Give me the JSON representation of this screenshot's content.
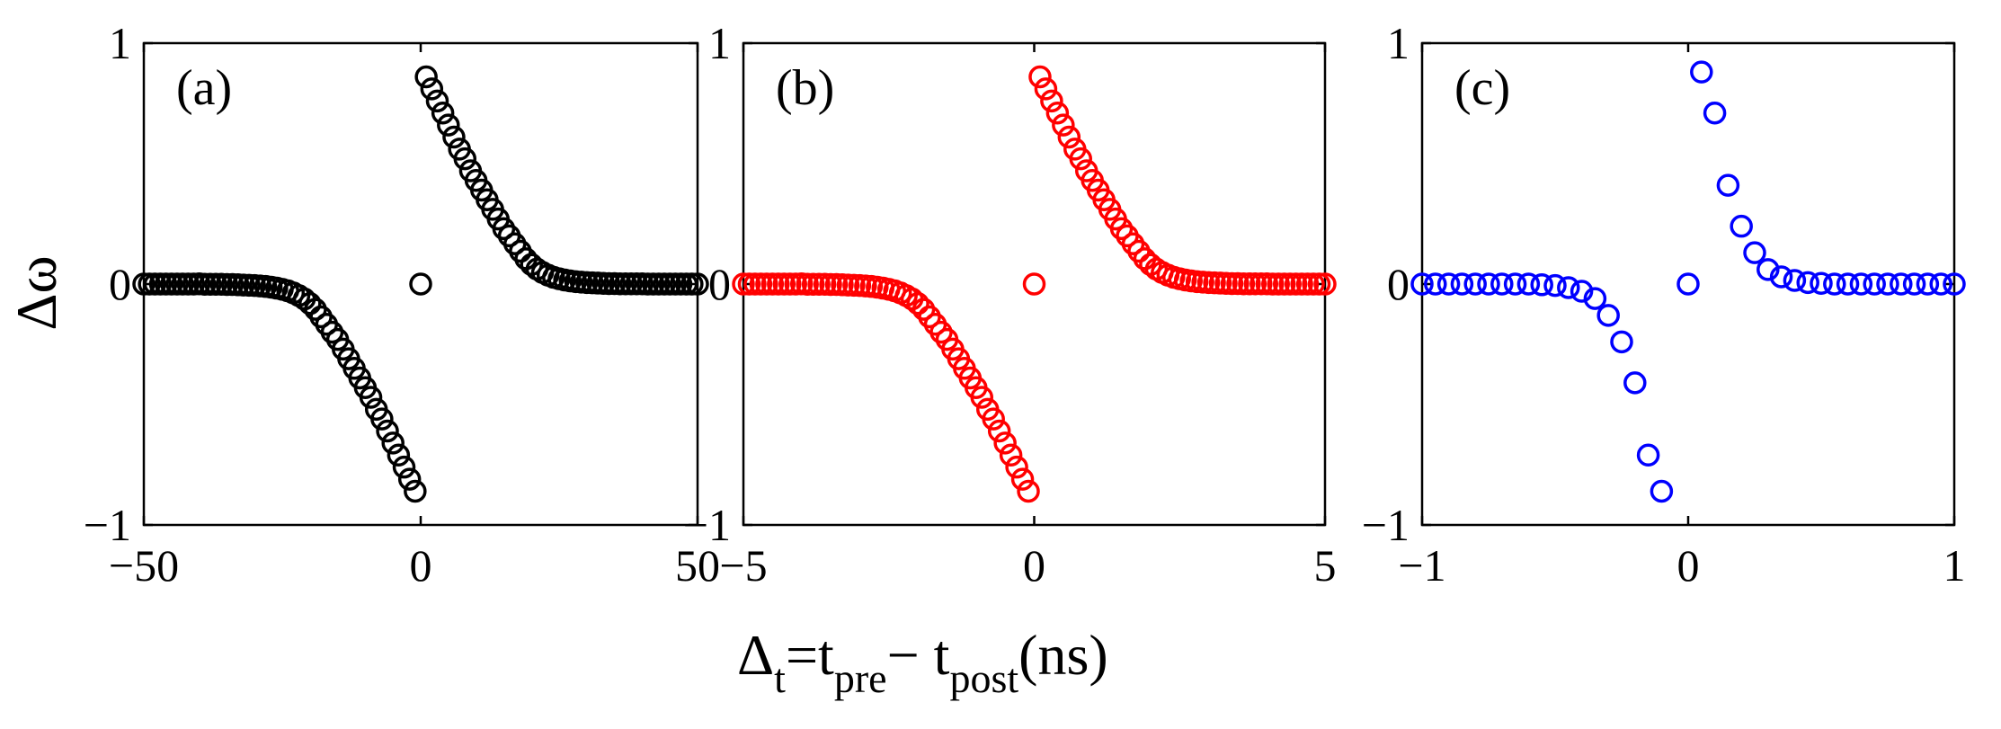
{
  "chart_data": [
    {
      "type": "scatter",
      "panel_label": "(a)",
      "marker_color": "#000000",
      "xlim": [
        -50,
        50
      ],
      "ylim": [
        -1,
        1
      ],
      "xticks": [
        -50,
        0,
        50
      ],
      "xtick_labels": [
        "−50",
        "0",
        "50"
      ],
      "yticks": [
        -1,
        0,
        1
      ],
      "ytick_labels": [
        "−1",
        "0",
        "1"
      ],
      "ylabel": "Δω",
      "x": [
        -50,
        -49,
        -48,
        -47,
        -46,
        -45,
        -44,
        -43,
        -42,
        -41,
        -40,
        -39,
        -38,
        -37,
        -36,
        -35,
        -34,
        -33,
        -32,
        -31,
        -30,
        -29,
        -28,
        -27,
        -26,
        -25,
        -24,
        -23,
        -22,
        -21,
        -20,
        -19,
        -18,
        -17,
        -16,
        -15,
        -14,
        -13,
        -12,
        -11,
        -10,
        -9,
        -8,
        -7,
        -6,
        -5,
        -4,
        -3,
        -2,
        -1,
        0,
        1,
        2,
        3,
        4,
        5,
        6,
        7,
        8,
        9,
        10,
        11,
        12,
        13,
        14,
        15,
        16,
        17,
        18,
        19,
        20,
        21,
        22,
        23,
        24,
        25,
        26,
        27,
        28,
        29,
        30,
        31,
        32,
        33,
        34,
        35,
        36,
        37,
        38,
        39,
        40,
        41,
        42,
        43,
        44,
        45,
        46,
        47,
        48,
        49,
        50
      ],
      "y": [
        0,
        0,
        0,
        0,
        0,
        0,
        0,
        0,
        0,
        0,
        0.001,
        -0.001,
        -0.001,
        -0.001,
        -0.001,
        -0.002,
        -0.002,
        -0.003,
        -0.004,
        -0.005,
        -0.006,
        -0.008,
        -0.01,
        -0.013,
        -0.017,
        -0.022,
        -0.028,
        -0.037,
        -0.048,
        -0.062,
        -0.081,
        -0.105,
        -0.136,
        -0.167,
        -0.2,
        -0.23,
        -0.27,
        -0.31,
        -0.35,
        -0.39,
        -0.43,
        -0.47,
        -0.52,
        -0.56,
        -0.61,
        -0.66,
        -0.71,
        -0.76,
        -0.81,
        -0.86,
        0,
        0.86,
        0.81,
        0.76,
        0.71,
        0.66,
        0.61,
        0.56,
        0.52,
        0.47,
        0.43,
        0.39,
        0.35,
        0.31,
        0.27,
        0.23,
        0.2,
        0.167,
        0.136,
        0.105,
        0.081,
        0.062,
        0.048,
        0.037,
        0.028,
        0.022,
        0.017,
        0.013,
        0.01,
        0.008,
        0.006,
        0.005,
        0.004,
        0.003,
        0.002,
        0.002,
        0.001,
        0.001,
        0.001,
        0.001,
        0.001,
        0,
        0,
        0,
        0,
        0,
        0,
        0,
        0,
        0,
        0
      ]
    },
    {
      "type": "scatter",
      "panel_label": "(b)",
      "marker_color": "#ff0000",
      "xlim": [
        -5,
        5
      ],
      "ylim": [
        -1,
        1
      ],
      "xticks": [
        -5,
        0,
        5
      ],
      "xtick_labels": [
        "−5",
        "0",
        "5"
      ],
      "yticks": [
        -1,
        0,
        1
      ],
      "ytick_labels": [
        "−1",
        "0",
        "1"
      ],
      "ylabel": "",
      "x": [
        -5,
        -4.9,
        -4.8,
        -4.7,
        -4.6,
        -4.5,
        -4.4,
        -4.3,
        -4.2,
        -4.1,
        -4,
        -3.9,
        -3.8,
        -3.7,
        -3.6,
        -3.5,
        -3.4,
        -3.3,
        -3.2,
        -3.1,
        -3,
        -2.9,
        -2.8,
        -2.7,
        -2.6,
        -2.5,
        -2.4,
        -2.3,
        -2.2,
        -2.1,
        -2,
        -1.9,
        -1.8,
        -1.7,
        -1.6,
        -1.5,
        -1.4,
        -1.3,
        -1.2,
        -1.1,
        -1,
        -0.9,
        -0.8,
        -0.7,
        -0.6,
        -0.5,
        -0.4,
        -0.3,
        -0.2,
        -0.1,
        0,
        0.1,
        0.2,
        0.3,
        0.4,
        0.5,
        0.6,
        0.7,
        0.8,
        0.9,
        1,
        1.1,
        1.2,
        1.3,
        1.4,
        1.5,
        1.6,
        1.7,
        1.8,
        1.9,
        2,
        2.1,
        2.2,
        2.3,
        2.4,
        2.5,
        2.6,
        2.7,
        2.8,
        2.9,
        3,
        3.1,
        3.2,
        3.3,
        3.4,
        3.5,
        3.6,
        3.7,
        3.8,
        3.9,
        4,
        4.1,
        4.2,
        4.3,
        4.4,
        4.5,
        4.6,
        4.7,
        4.8,
        4.9,
        5
      ],
      "y": [
        0,
        0,
        0,
        0,
        0,
        0,
        0,
        0,
        0,
        0,
        0.001,
        -0.001,
        -0.001,
        -0.001,
        -0.001,
        -0.002,
        -0.002,
        -0.003,
        -0.004,
        -0.005,
        -0.006,
        -0.008,
        -0.01,
        -0.013,
        -0.017,
        -0.022,
        -0.028,
        -0.037,
        -0.048,
        -0.062,
        -0.081,
        -0.105,
        -0.136,
        -0.167,
        -0.2,
        -0.23,
        -0.27,
        -0.31,
        -0.35,
        -0.39,
        -0.43,
        -0.47,
        -0.52,
        -0.56,
        -0.61,
        -0.66,
        -0.71,
        -0.76,
        -0.81,
        -0.86,
        0,
        0.86,
        0.81,
        0.76,
        0.71,
        0.66,
        0.61,
        0.56,
        0.52,
        0.47,
        0.43,
        0.39,
        0.35,
        0.31,
        0.27,
        0.23,
        0.2,
        0.167,
        0.136,
        0.105,
        0.081,
        0.062,
        0.048,
        0.037,
        0.028,
        0.022,
        0.017,
        0.013,
        0.01,
        0.008,
        0.006,
        0.005,
        0.004,
        0.003,
        0.002,
        0.002,
        0.001,
        0.001,
        0.001,
        0.001,
        0.001,
        0,
        0,
        0,
        0,
        0,
        0,
        0,
        0,
        0,
        0
      ]
    },
    {
      "type": "scatter",
      "panel_label": "(c)",
      "marker_color": "#0000ff",
      "xlim": [
        -1,
        1
      ],
      "ylim": [
        -1,
        1
      ],
      "xticks": [
        -1,
        0,
        1
      ],
      "xtick_labels": [
        "−1",
        "0",
        "1"
      ],
      "yticks": [
        -1,
        0,
        1
      ],
      "ytick_labels": [
        "−1",
        "0",
        "1"
      ],
      "ylabel": "",
      "x": [
        -1,
        -0.95,
        -0.9,
        -0.85,
        -0.8,
        -0.75,
        -0.7,
        -0.65,
        -0.6,
        -0.55,
        -0.5,
        -0.45,
        -0.4,
        -0.35,
        -0.3,
        -0.25,
        -0.2,
        -0.15,
        -0.1,
        -0.05,
        0,
        0.05,
        0.1,
        0.15,
        0.2,
        0.25,
        0.3,
        0.35,
        0.4,
        0.45,
        0.5,
        0.55,
        0.6,
        0.65,
        0.7,
        0.75,
        0.8,
        0.85,
        0.9,
        0.95,
        1
      ],
      "y": [
        0,
        0,
        0,
        0,
        0,
        0,
        0,
        0,
        0,
        -0.003,
        -0.006,
        -0.015,
        -0.03,
        -0.06,
        -0.13,
        -0.24,
        -0.41,
        -0.71,
        -0.86,
        null,
        0,
        0.88,
        0.71,
        0.41,
        0.24,
        0.13,
        0.06,
        0.03,
        0.015,
        0.006,
        0.003,
        0,
        0,
        0,
        0,
        0,
        0,
        0,
        0,
        0,
        0
      ]
    }
  ],
  "shared_xlabel": {
    "main": "Δ",
    "sub_t": "t",
    "eq": "=t",
    "sub_pre": "pre",
    "minus": "− t",
    "sub_post": "post",
    "unit": "(ns)"
  }
}
